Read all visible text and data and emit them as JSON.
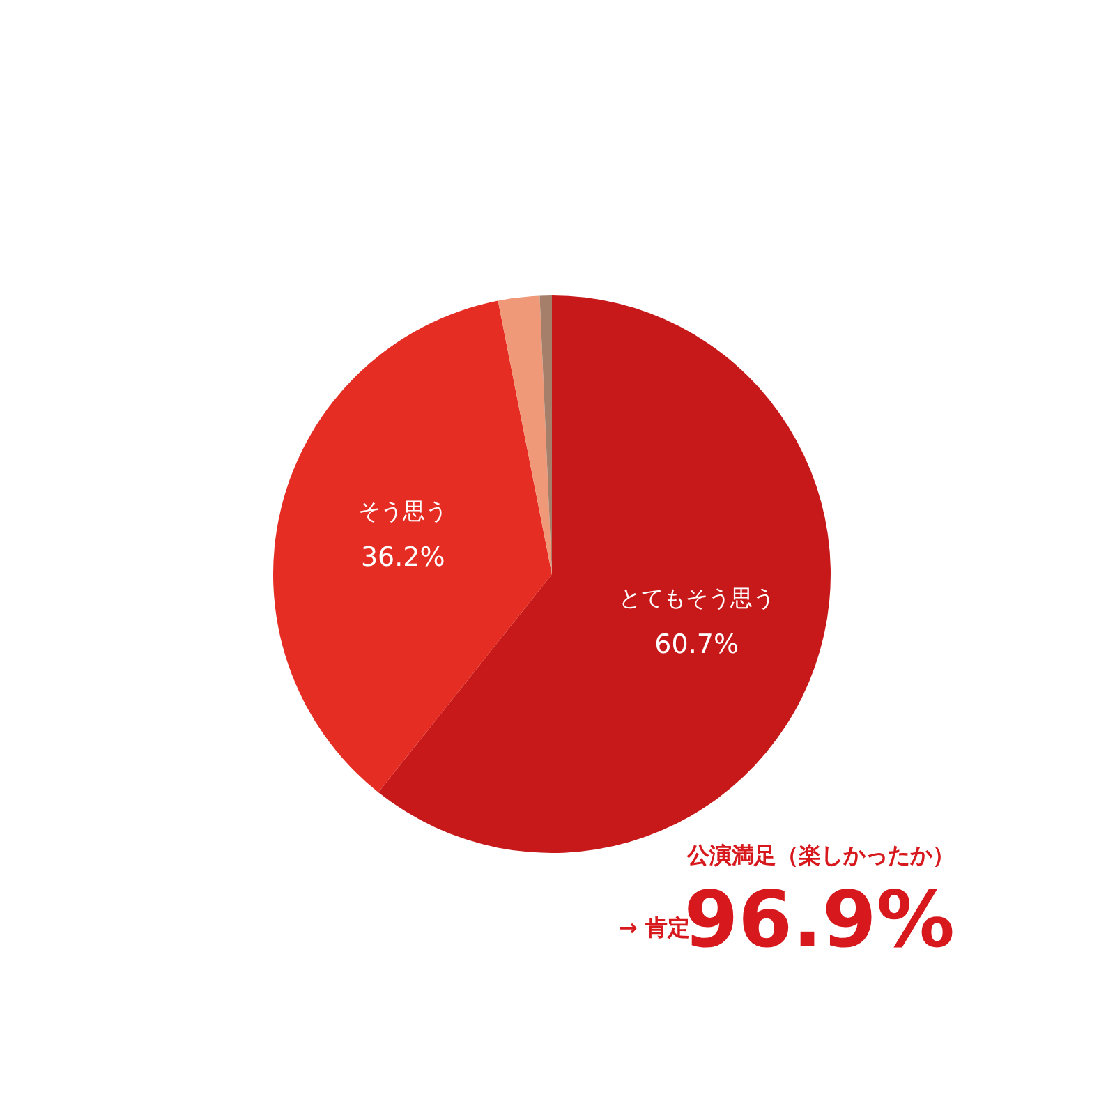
{
  "chart_data": {
    "type": "pie",
    "categories": [
      "とてもそう思う",
      "そう思う",
      null,
      null
    ],
    "values": [
      60.7,
      36.2,
      2.4,
      0.7
    ],
    "colors": [
      "#c8191a",
      "#e52d24",
      "#ef9978",
      "#a57f6a"
    ],
    "value_labels": [
      "60.7%",
      "36.2%",
      null,
      null
    ],
    "annotations": [
      "公演満足（楽しかったか）",
      "→ 肯定",
      "96.9%"
    ]
  }
}
